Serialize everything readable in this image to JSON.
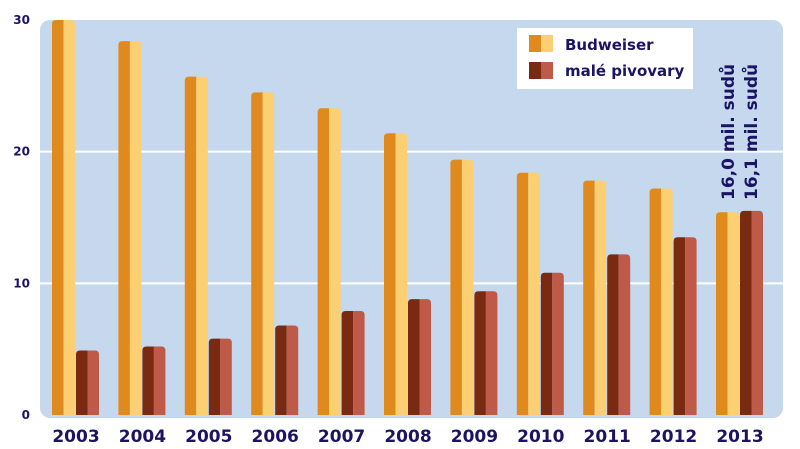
{
  "chart_data": {
    "type": "bar",
    "categories": [
      "2003",
      "2004",
      "2005",
      "2006",
      "2007",
      "2008",
      "2009",
      "2010",
      "2011",
      "2012",
      "2013"
    ],
    "series": [
      {
        "name": "Budweiser",
        "values": [
          30.0,
          28.4,
          25.7,
          24.5,
          23.3,
          21.4,
          19.4,
          18.4,
          17.8,
          17.2,
          15.4
        ],
        "colors": [
          "#e08a1e",
          "#fccf72"
        ]
      },
      {
        "name": "malé pivovary",
        "values": [
          4.9,
          5.2,
          5.8,
          6.8,
          7.9,
          8.8,
          9.4,
          10.8,
          12.2,
          13.5,
          15.5
        ],
        "colors": [
          "#7b2a12",
          "#c05a48"
        ]
      }
    ],
    "yticks": [
      "0",
      "10",
      "20",
      "30"
    ],
    "ylim": [
      0,
      30
    ],
    "grid": true,
    "legend_position": "top-right",
    "annotations": [
      "16,0 mil. sudů",
      "16,1 mil. sudů"
    ],
    "background": "#c5d8ee"
  }
}
